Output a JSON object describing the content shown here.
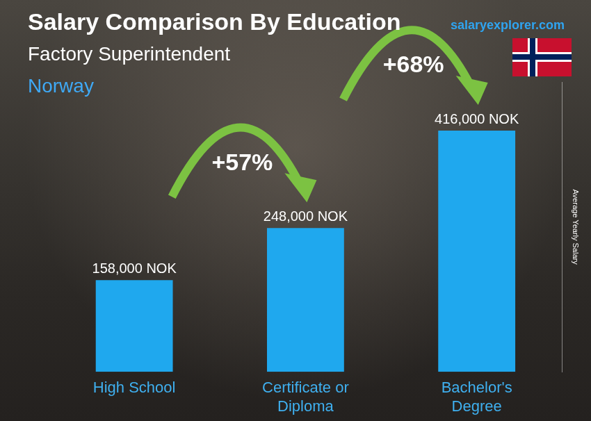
{
  "chart_data": {
    "type": "bar",
    "title": "Salary Comparison By Education",
    "subtitle": "Factory Superintendent",
    "country": "Norway",
    "source": "salaryexplorer.com",
    "y_label": "Average Yearly Salary",
    "categories": [
      "High School",
      "Certificate or Diploma",
      "Bachelor's Degree"
    ],
    "values": [
      158000,
      248000,
      416000
    ],
    "value_labels": [
      "158,000 NOK",
      "248,000 NOK",
      "416,000 NOK"
    ],
    "data_labels": true,
    "color": "#1fa8ee",
    "ylim": [
      0,
      500000
    ],
    "grid": false,
    "tick_labels": "x",
    "annotations": [
      {
        "text": "+57%",
        "from": "High School",
        "to": "Certificate or Diploma"
      },
      {
        "text": "+68%",
        "from": "Certificate or Diploma",
        "to": "Bachelor's Degree"
      }
    ]
  }
}
